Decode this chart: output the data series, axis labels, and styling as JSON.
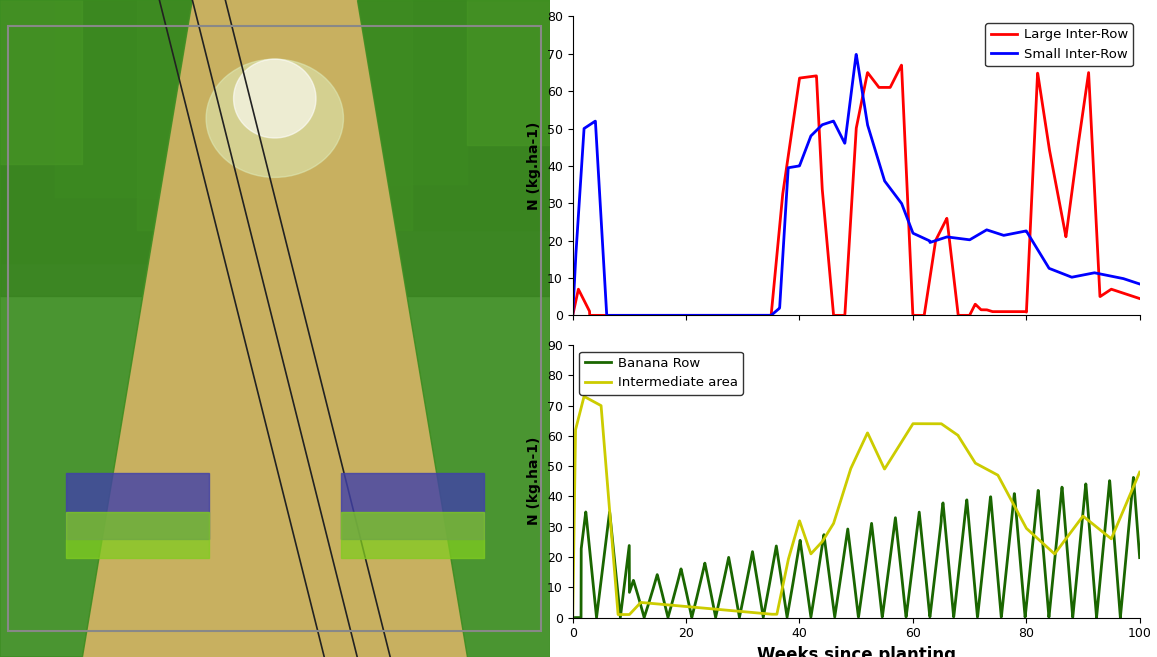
{
  "top_chart": {
    "ylabel": "N (kg.ha-1)",
    "ylim": [
      0,
      80
    ],
    "yticks": [
      0,
      10,
      20,
      30,
      40,
      50,
      60,
      70,
      80
    ],
    "xlim": [
      0,
      100
    ],
    "xticks": [
      0,
      20,
      40,
      60,
      80,
      100
    ],
    "legend": [
      "Large Inter-Row",
      "Small Inter-Row"
    ],
    "colors": [
      "red",
      "blue"
    ],
    "linewidth": 2.0
  },
  "bottom_chart": {
    "ylabel": "N (kg.ha-1)",
    "xlabel": "Weeks since planting",
    "ylim": [
      0,
      90
    ],
    "yticks": [
      0,
      10,
      20,
      30,
      40,
      50,
      60,
      70,
      80,
      90
    ],
    "xlim": [
      0,
      100
    ],
    "xticks": [
      0,
      20,
      40,
      60,
      80,
      100
    ],
    "legend": [
      "Banana Row",
      "Intermediate area"
    ],
    "colors": [
      "#1a6600",
      "#cccc00"
    ],
    "linewidth": 2.0
  },
  "fig_width": 11.57,
  "fig_height": 6.57,
  "dpi": 100
}
